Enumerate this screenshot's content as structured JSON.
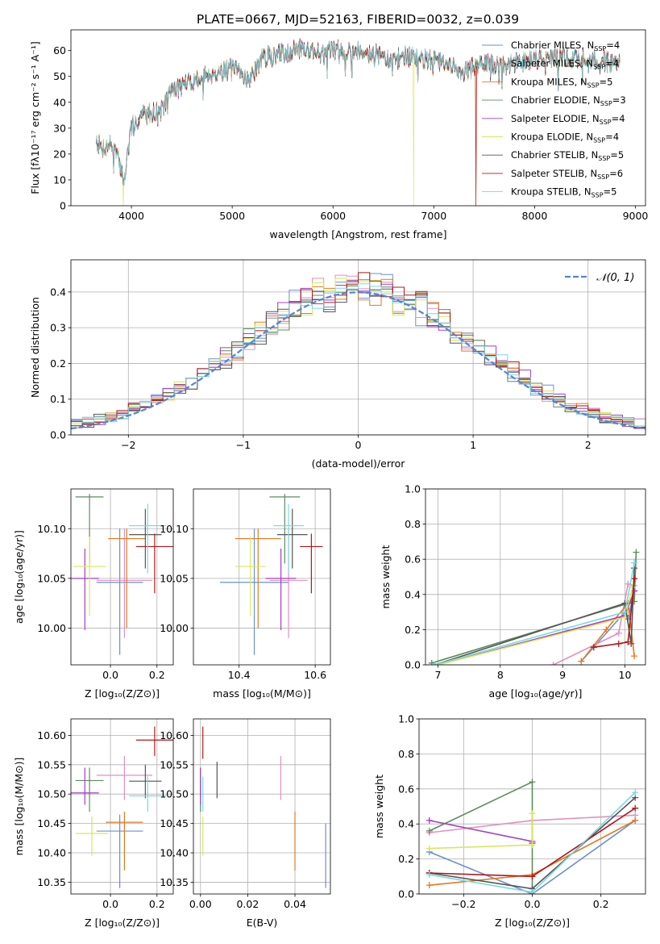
{
  "figure_title": "PLATE=0667, MJD=52163, FIBERID=0032, z=0.039",
  "colors": {
    "c0": "#6a8fd8",
    "c1": "#e38fc0",
    "c2": "#e07b20",
    "c3": "#5e8c5e",
    "c4": "#a33fc0",
    "c5": "#d8e85a",
    "c6": "#555555",
    "c7": "#b01818",
    "c8": "#7ad8e0",
    "gauss": "#4f86d8"
  },
  "legend_spectrum": [
    {
      "prefix": "Chabrier MILES, N",
      "sub": "SSP",
      "suffix": "=4"
    },
    {
      "prefix": "Salpeter MILES, N",
      "sub": "SSP",
      "suffix": "=4"
    },
    {
      "prefix": "Kroupa MILES, N",
      "sub": "SSP",
      "suffix": "=5"
    },
    {
      "prefix": "Chabrier ELODIE, N",
      "sub": "SSP",
      "suffix": "=3"
    },
    {
      "prefix": "Salpeter ELODIE, N",
      "sub": "SSP",
      "suffix": "=4"
    },
    {
      "prefix": "Kroupa ELODIE, N",
      "sub": "SSP",
      "suffix": "=4"
    },
    {
      "prefix": "Chabrier STELIB, N",
      "sub": "SSP",
      "suffix": "=5"
    },
    {
      "prefix": "Salpeter STELIB, N",
      "sub": "SSP",
      "suffix": "=6"
    },
    {
      "prefix": "Kroupa STELIB, N",
      "sub": "SSP",
      "suffix": "=5"
    }
  ],
  "legend_hist": "𝒩(0, 1)",
  "chart_data": [
    {
      "id": "spectrum",
      "type": "line",
      "xlabel": "wavelength [Angstrom, rest frame]",
      "ylabel": "Flux [fλ10⁻¹⁷ erg cm⁻² s⁻¹ A⁻¹]",
      "xlim": [
        3400,
        9100
      ],
      "ylim": [
        0,
        68
      ],
      "xticks": [
        4000,
        5000,
        6000,
        7000,
        8000,
        9000
      ],
      "yticks": [
        0,
        10,
        20,
        30,
        40,
        50,
        60
      ],
      "x_range": [
        3650,
        8850
      ],
      "anchors": [
        [
          3650,
          26
        ],
        [
          3700,
          22
        ],
        [
          3800,
          24
        ],
        [
          3870,
          18
        ],
        [
          3930,
          10
        ],
        [
          3970,
          22
        ],
        [
          4000,
          30
        ],
        [
          4100,
          35
        ],
        [
          4300,
          37
        ],
        [
          4400,
          45
        ],
        [
          4600,
          48
        ],
        [
          4800,
          51
        ],
        [
          5000,
          53
        ],
        [
          5170,
          49
        ],
        [
          5300,
          57
        ],
        [
          5500,
          59
        ],
        [
          5700,
          61
        ],
        [
          5890,
          59
        ],
        [
          6000,
          60
        ],
        [
          6300,
          60
        ],
        [
          6500,
          58
        ],
        [
          6560,
          55
        ],
        [
          6700,
          58
        ],
        [
          7000,
          56
        ],
        [
          7300,
          52
        ],
        [
          7500,
          55
        ],
        [
          7700,
          54
        ],
        [
          8000,
          57
        ],
        [
          8200,
          57
        ],
        [
          8500,
          57
        ],
        [
          8850,
          55
        ]
      ],
      "dropouts": [
        {
          "series": 5,
          "x": 3920
        },
        {
          "series": 5,
          "x": 6800
        },
        {
          "series": 2,
          "x": 7420
        },
        {
          "series": 7,
          "x": 7420
        }
      ]
    },
    {
      "id": "residual-hist",
      "type": "histogram",
      "xlabel": "(data-model)/error",
      "ylabel": "Normed distribution",
      "xlim": [
        -2.5,
        2.5
      ],
      "ylim": [
        0,
        0.49
      ],
      "xticks": [
        -2,
        -1,
        0,
        1,
        2
      ],
      "yticks": [
        0,
        0.1,
        0.2,
        0.3,
        0.4
      ],
      "bin_width": 0.1,
      "gaussian": {
        "mu": 0,
        "sigma": 1
      }
    },
    {
      "id": "age-vs-z",
      "type": "errorbar",
      "xlabel": "Z [log₁₀(Z/Z⊙)]",
      "ylabel": "age  [log₁₀(age/yr)]",
      "xlim": [
        -0.17,
        0.27
      ],
      "ylim": [
        9.963,
        10.14
      ],
      "xticks": [
        0.0,
        0.2
      ],
      "yticks": [
        10.0,
        10.05,
        10.1
      ],
      "points": [
        {
          "x": 0.04,
          "y": 10.046,
          "xerr": 0.1,
          "ylo": 9.973,
          "yhi": 10.1
        },
        {
          "x": 0.06,
          "y": 10.048,
          "xerr": 0.12,
          "ylo": 9.99,
          "yhi": 10.1
        },
        {
          "x": 0.07,
          "y": 10.09,
          "xerr": 0.08,
          "ylo": 10.0,
          "yhi": 10.1
        },
        {
          "x": -0.09,
          "y": 10.132,
          "xerr": 0.06,
          "ylo": 10.065,
          "yhi": 10.135
        },
        {
          "x": -0.11,
          "y": 10.05,
          "xerr": 0.06,
          "ylo": 9.998,
          "yhi": 10.08
        },
        {
          "x": -0.09,
          "y": 10.062,
          "xerr": 0.07,
          "ylo": 10.012,
          "yhi": 10.092
        },
        {
          "x": 0.15,
          "y": 10.094,
          "xerr": 0.07,
          "ylo": 10.06,
          "yhi": 10.12
        },
        {
          "x": 0.19,
          "y": 10.082,
          "xerr": 0.08,
          "ylo": 10.035,
          "yhi": 10.095
        },
        {
          "x": 0.16,
          "y": 10.103,
          "xerr": 0.08,
          "ylo": 10.055,
          "yhi": 10.125
        }
      ]
    },
    {
      "id": "age-vs-mass",
      "type": "errorbar",
      "xlabel": "mass [log₁₀(M/M⊙)]",
      "ylabel": "",
      "xlim": [
        10.28,
        10.64
      ],
      "ylim": [
        9.963,
        10.14
      ],
      "xticks": [
        10.4,
        10.6
      ],
      "yticks": [
        10.0,
        10.05,
        10.1
      ],
      "points": [
        {
          "x": 10.44,
          "y": 10.046,
          "xerr": 0.09,
          "ylo": 9.973,
          "yhi": 10.1
        },
        {
          "x": 10.53,
          "y": 10.048,
          "xerr": 0.05,
          "ylo": 9.99,
          "yhi": 10.1
        },
        {
          "x": 10.45,
          "y": 10.09,
          "xerr": 0.06,
          "ylo": 10.0,
          "yhi": 10.1
        },
        {
          "x": 10.52,
          "y": 10.132,
          "xerr": 0.04,
          "ylo": 10.065,
          "yhi": 10.135
        },
        {
          "x": 10.51,
          "y": 10.05,
          "xerr": 0.04,
          "ylo": 9.998,
          "yhi": 10.08
        },
        {
          "x": 10.43,
          "y": 10.062,
          "xerr": 0.04,
          "ylo": 10.012,
          "yhi": 10.092
        },
        {
          "x": 10.54,
          "y": 10.094,
          "xerr": 0.04,
          "ylo": 10.06,
          "yhi": 10.12
        },
        {
          "x": 10.59,
          "y": 10.082,
          "xerr": 0.03,
          "ylo": 10.035,
          "yhi": 10.095
        },
        {
          "x": 10.53,
          "y": 10.103,
          "xerr": 0.04,
          "ylo": 10.055,
          "yhi": 10.125
        }
      ]
    },
    {
      "id": "weight-vs-age",
      "type": "line",
      "xlabel": "age  [log₁₀(age/yr)]",
      "ylabel": "mass weight",
      "xlim": [
        6.8,
        10.33
      ],
      "ylim": [
        0,
        1
      ],
      "xticks": [
        7,
        8,
        9,
        10
      ],
      "yticks": [
        0,
        0.2,
        0.4,
        0.6,
        0.8,
        1.0
      ],
      "series": [
        {
          "x": [
            9.3,
            10.0,
            10.05,
            10.15
          ],
          "y": [
            0.02,
            0.3,
            0.26,
            0.42
          ]
        },
        {
          "x": [
            8.85,
            9.9,
            10.05,
            10.15
          ],
          "y": [
            0.0,
            0.18,
            0.46,
            0.45
          ]
        },
        {
          "x": [
            9.3,
            9.7,
            10.05,
            10.15
          ],
          "y": [
            0.02,
            0.2,
            0.35,
            0.05
          ]
        },
        {
          "x": [
            6.9,
            10.15,
            10.18
          ],
          "y": [
            0.01,
            0.36,
            0.64
          ]
        },
        {
          "x": [
            7.0,
            10.0,
            10.15
          ],
          "y": [
            0.0,
            0.28,
            0.42
          ]
        },
        {
          "x": [
            7.0,
            10.0,
            10.12
          ],
          "y": [
            0.0,
            0.27,
            0.44
          ]
        },
        {
          "x": [
            6.95,
            10.0,
            10.1,
            10.15
          ],
          "y": [
            0.0,
            0.35,
            0.12,
            0.55
          ]
        },
        {
          "x": [
            9.5,
            9.9,
            10.05,
            10.15
          ],
          "y": [
            0.1,
            0.12,
            0.13,
            0.49
          ]
        },
        {
          "x": [
            6.95,
            10.0,
            10.15
          ],
          "y": [
            0.0,
            0.3,
            0.58
          ]
        }
      ]
    },
    {
      "id": "mass-vs-z",
      "type": "errorbar",
      "xlabel": "Z [log₁₀(Z/Z⊙)]",
      "ylabel": "mass [log₁₀(M/M⊙)]",
      "xlim": [
        -0.17,
        0.27
      ],
      "ylim": [
        10.33,
        10.628
      ],
      "xticks": [
        0.0,
        0.2
      ],
      "yticks": [
        10.35,
        10.4,
        10.45,
        10.5,
        10.55,
        10.6
      ],
      "points": [
        {
          "x": 0.04,
          "y": 10.437,
          "xerr": 0.1,
          "ylo": 10.34,
          "yhi": 10.465
        },
        {
          "x": 0.06,
          "y": 10.532,
          "xerr": 0.12,
          "ylo": 10.49,
          "yhi": 10.565
        },
        {
          "x": 0.06,
          "y": 10.452,
          "xerr": 0.08,
          "ylo": 10.37,
          "yhi": 10.47
        },
        {
          "x": -0.09,
          "y": 10.523,
          "xerr": 0.06,
          "ylo": 10.47,
          "yhi": 10.545
        },
        {
          "x": -0.11,
          "y": 10.502,
          "xerr": 0.06,
          "ylo": 10.482,
          "yhi": 10.545
        },
        {
          "x": -0.08,
          "y": 10.433,
          "xerr": 0.07,
          "ylo": 10.395,
          "yhi": 10.462
        },
        {
          "x": 0.15,
          "y": 10.522,
          "xerr": 0.07,
          "ylo": 10.493,
          "yhi": 10.55
        },
        {
          "x": 0.19,
          "y": 10.592,
          "xerr": 0.08,
          "ylo": 10.565,
          "yhi": 10.615
        },
        {
          "x": 0.16,
          "y": 10.497,
          "xerr": 0.08,
          "ylo": 10.47,
          "yhi": 10.53
        }
      ]
    },
    {
      "id": "mass-vs-ebv",
      "type": "errorbar",
      "xlabel": "E(B-V)",
      "ylabel": "",
      "xlim": [
        -0.003,
        0.055
      ],
      "ylim": [
        10.33,
        10.628
      ],
      "xticks": [
        0.0,
        0.02,
        0.04
      ],
      "yticks": [
        10.35,
        10.4,
        10.45,
        10.5,
        10.55,
        10.6
      ],
      "points": [
        {
          "x": 0.053,
          "y": 10.437,
          "xerr": 0,
          "ylo": 10.34,
          "yhi": 10.45
        },
        {
          "x": 0.034,
          "y": 10.532,
          "xerr": 0,
          "ylo": 10.49,
          "yhi": 10.565
        },
        {
          "x": 0.04,
          "y": 10.452,
          "xerr": 0,
          "ylo": 10.37,
          "yhi": 10.47
        },
        {
          "x": 0.0,
          "y": 10.523,
          "xerr": 0,
          "ylo": 10.47,
          "yhi": 10.545
        },
        {
          "x": 0.0,
          "y": 10.502,
          "xerr": 0,
          "ylo": 10.482,
          "yhi": 10.545
        },
        {
          "x": 0.001,
          "y": 10.433,
          "xerr": 0,
          "ylo": 10.395,
          "yhi": 10.462
        },
        {
          "x": 0.007,
          "y": 10.522,
          "xerr": 0,
          "ylo": 10.493,
          "yhi": 10.555
        },
        {
          "x": 0.001,
          "y": 10.592,
          "xerr": 0,
          "ylo": 10.56,
          "yhi": 10.615
        },
        {
          "x": 0.001,
          "y": 10.497,
          "xerr": 0,
          "ylo": 10.47,
          "yhi": 10.53
        }
      ]
    },
    {
      "id": "weight-vs-z",
      "type": "line",
      "xlabel": "Z [log₁₀(Z/Z⊙)]",
      "ylabel": "mass weight",
      "xlim": [
        -0.33,
        0.33
      ],
      "ylim": [
        0,
        1
      ],
      "xticks": [
        -0.2,
        0.0,
        0.2
      ],
      "yticks": [
        0,
        0.2,
        0.4,
        0.6,
        0.8,
        1.0
      ],
      "series": [
        {
          "x": [
            -0.3,
            0.0,
            0.3
          ],
          "y": [
            0.24,
            0.0,
            0.42
          ]
        },
        {
          "x": [
            -0.3,
            0.0,
            0.3
          ],
          "y": [
            0.35,
            0.42,
            0.45
          ]
        },
        {
          "x": [
            -0.3,
            0.0,
            0.3
          ],
          "y": [
            0.05,
            0.11,
            0.42
          ]
        },
        {
          "x": [
            -0.3,
            0.0,
            0.0
          ],
          "y": [
            0.36,
            0.64,
            0.0
          ]
        },
        {
          "x": [
            -0.3,
            0.0,
            0.0
          ],
          "y": [
            0.42,
            0.3,
            0.29
          ]
        },
        {
          "x": [
            -0.3,
            0.0,
            0.0
          ],
          "y": [
            0.26,
            0.28,
            0.46
          ]
        },
        {
          "x": [
            -0.3,
            0.0,
            0.3
          ],
          "y": [
            0.12,
            0.03,
            0.55
          ]
        },
        {
          "x": [
            -0.3,
            0.0,
            0.3
          ],
          "y": [
            0.12,
            0.1,
            0.49
          ]
        },
        {
          "x": [
            -0.3,
            0.0,
            0.3
          ],
          "y": [
            0.11,
            0.01,
            0.58
          ]
        }
      ]
    }
  ]
}
